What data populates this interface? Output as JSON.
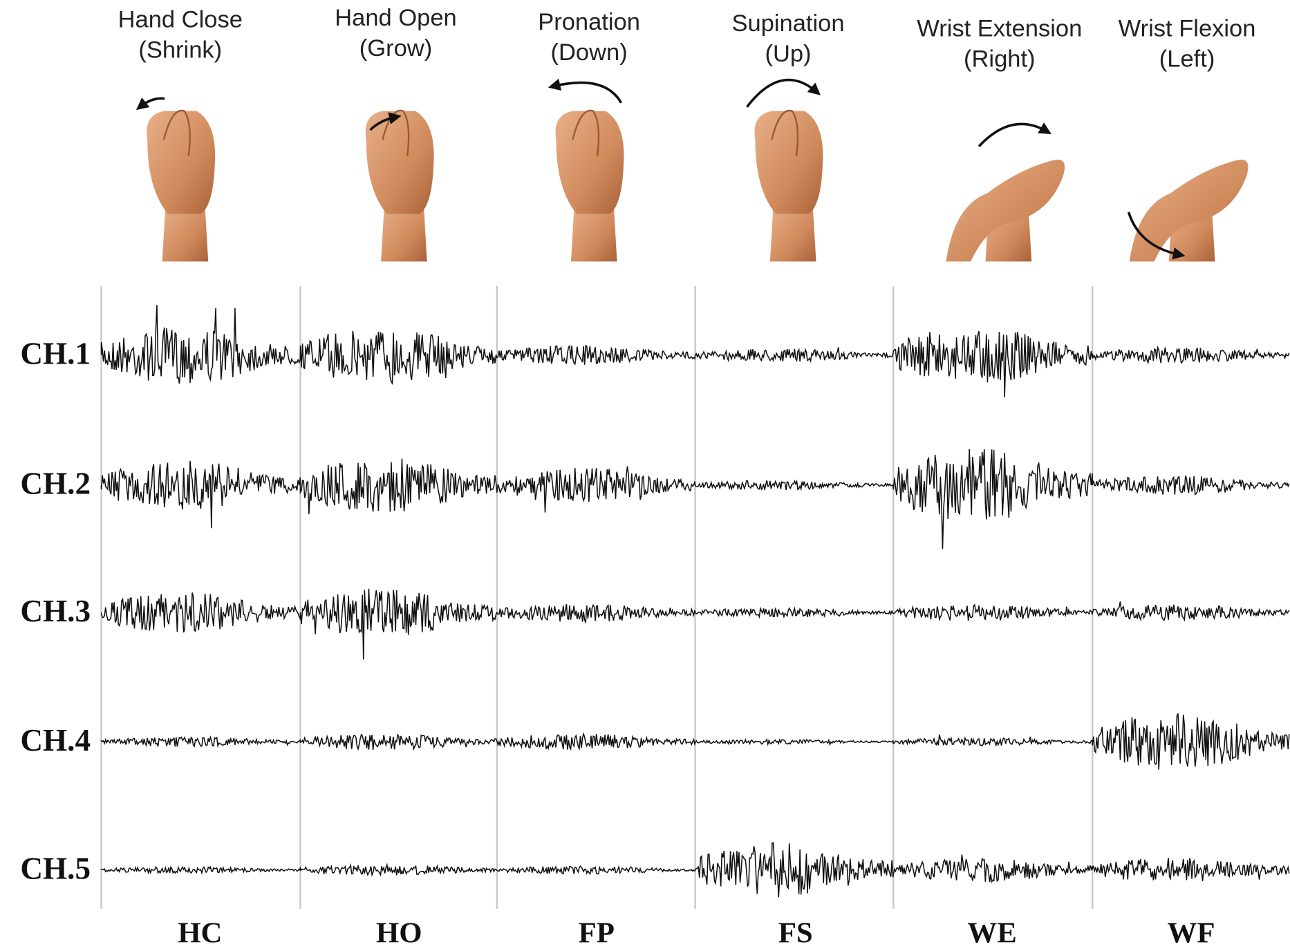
{
  "gestures": [
    {
      "name": "Hand Close",
      "direction": "(Shrink)",
      "code": "HC"
    },
    {
      "name": "Hand Open",
      "direction": "(Grow)",
      "code": "HO"
    },
    {
      "name": "Pronation",
      "direction": "(Down)",
      "code": "FP"
    },
    {
      "name": "Supination",
      "direction": "(Up)",
      "code": "FS"
    },
    {
      "name": "Wrist Extension",
      "direction": "(Right)",
      "code": "WE"
    },
    {
      "name": "Wrist Flexion",
      "direction": "(Left)",
      "code": "WF"
    }
  ],
  "channels": [
    "CH.1",
    "CH.2",
    "CH.3",
    "CH.4",
    "CH.5"
  ]
}
